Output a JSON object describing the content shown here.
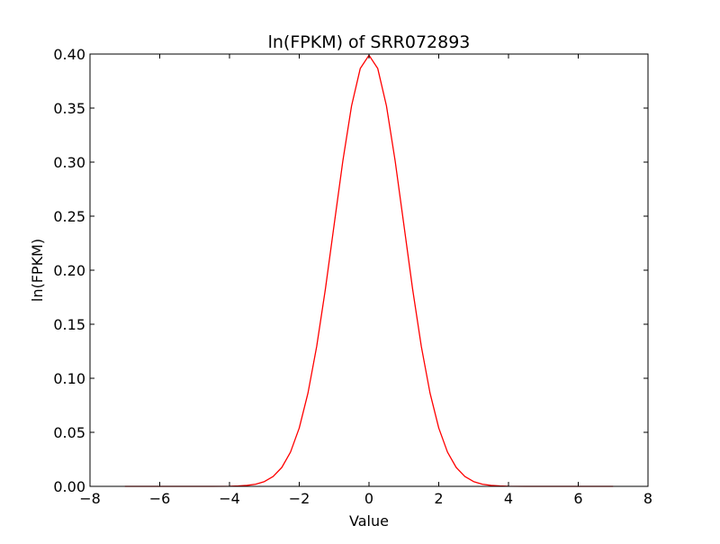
{
  "chart_data": {
    "type": "line",
    "title": "ln(FPKM) of SRR072893",
    "xlabel": "Value",
    "ylabel": "ln(FPKM)",
    "xlim": [
      -8,
      8
    ],
    "ylim": [
      0,
      0.4
    ],
    "xticks": [
      -8,
      -6,
      -4,
      -2,
      0,
      2,
      4,
      6,
      8
    ],
    "xtick_labels": [
      "−8",
      "−6",
      "−4",
      "−2",
      "0",
      "2",
      "4",
      "6",
      "8"
    ],
    "yticks": [
      0,
      0.05,
      0.1,
      0.15,
      0.2,
      0.25,
      0.3,
      0.35,
      0.4
    ],
    "ytick_labels": [
      "0.00",
      "0.05",
      "0.10",
      "0.15",
      "0.20",
      "0.25",
      "0.30",
      "0.35",
      "0.40"
    ],
    "grid": false,
    "series": [
      {
        "color": "#ff0000",
        "x": [
          -7,
          -6.5,
          -6,
          -5.5,
          -5,
          -4.5,
          -4,
          -3.75,
          -3.5,
          -3.25,
          -3,
          -2.75,
          -2.5,
          -2.25,
          -2,
          -1.75,
          -1.5,
          -1.25,
          -1,
          -0.75,
          -0.5,
          -0.25,
          0,
          0.25,
          0.5,
          0.75,
          1,
          1.25,
          1.5,
          1.75,
          2,
          2.25,
          2.5,
          2.75,
          3,
          3.25,
          3.5,
          3.75,
          4,
          4.5,
          5,
          5.5,
          6,
          6.5,
          7
        ],
        "y": [
          0,
          0,
          0,
          0,
          0,
          0,
          0.0001,
          0.0004,
          0.0009,
          0.002,
          0.0044,
          0.0091,
          0.0175,
          0.0317,
          0.054,
          0.0863,
          0.1295,
          0.1826,
          0.242,
          0.3011,
          0.3521,
          0.3867,
          0.3989,
          0.3867,
          0.3521,
          0.3011,
          0.242,
          0.1826,
          0.1295,
          0.0863,
          0.054,
          0.0317,
          0.0175,
          0.0091,
          0.0044,
          0.002,
          0.0009,
          0.0004,
          0.0001,
          0,
          0,
          0,
          0,
          0,
          0
        ]
      }
    ]
  }
}
